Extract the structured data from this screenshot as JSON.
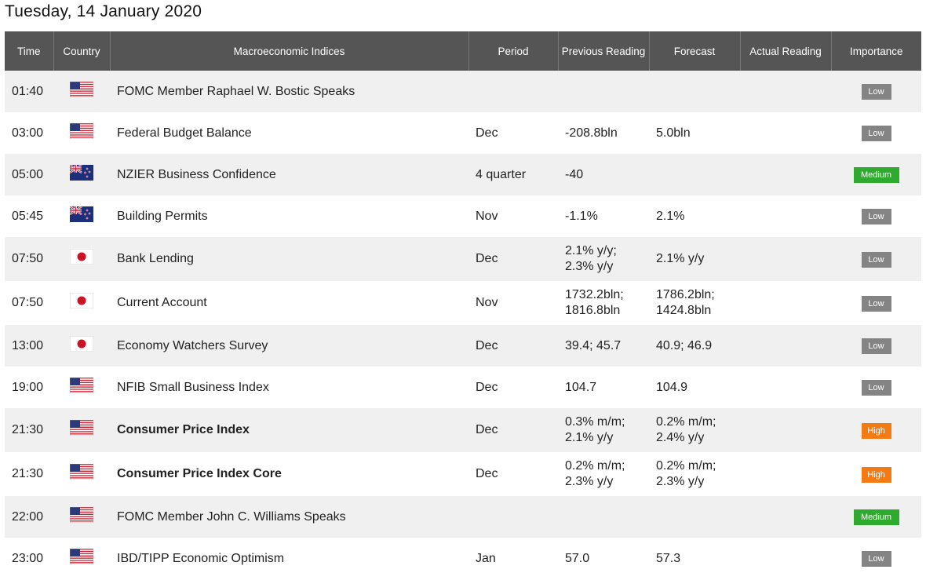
{
  "page": {
    "date_title": "Tuesday, 14 January 2020"
  },
  "colors": {
    "header_bg": "#555555",
    "row_alt_bg": "#f0f0f0",
    "low": "#848484",
    "medium": "#2eaa2e",
    "high": "#f47a14"
  },
  "columns": {
    "time": "Time",
    "country": "Country",
    "indices": "Macroeconomic Indices",
    "period": "Period",
    "previous": "Previous Reading",
    "forecast": "Forecast",
    "actual": "Actual Reading",
    "importance": "Importance"
  },
  "rows": [
    {
      "time": "01:40",
      "flag": "us-flag",
      "name": "FOMC Member Raphael W. Bostic Speaks",
      "bold": false,
      "period": "",
      "previous": "",
      "forecast": "",
      "actual": "",
      "importance": "Low"
    },
    {
      "time": "03:00",
      "flag": "us-flag",
      "name": "Federal Budget Balance",
      "bold": false,
      "period": "Dec",
      "previous": "-208.8bln",
      "forecast": "5.0bln",
      "actual": "",
      "importance": "Low"
    },
    {
      "time": "05:00",
      "flag": "nz-flag",
      "name": "NZIER Business Confidence",
      "bold": false,
      "period": "4 quarter",
      "previous": "-40",
      "forecast": "",
      "actual": "",
      "importance": "Medium"
    },
    {
      "time": "05:45",
      "flag": "nz-flag",
      "name": "Building Permits",
      "bold": false,
      "period": "Nov",
      "previous": "-1.1%",
      "forecast": "2.1%",
      "actual": "",
      "importance": "Low"
    },
    {
      "time": "07:50",
      "flag": "jp-flag",
      "name": "Bank Lending",
      "bold": false,
      "period": "Dec",
      "previous": "2.1% y/y;\n2.3% y/y",
      "forecast": "2.1% y/y",
      "actual": "",
      "importance": "Low"
    },
    {
      "time": "07:50",
      "flag": "jp-flag",
      "name": "Current Account",
      "bold": false,
      "period": "Nov",
      "previous": "1732.2bln;\n1816.8bln",
      "forecast": "1786.2bln;\n1424.8bln",
      "actual": "",
      "importance": "Low"
    },
    {
      "time": "13:00",
      "flag": "jp-flag",
      "name": "Economy Watchers Survey",
      "bold": false,
      "period": "Dec",
      "previous": "39.4; 45.7",
      "forecast": "40.9; 46.9",
      "actual": "",
      "importance": "Low"
    },
    {
      "time": "19:00",
      "flag": "us-flag",
      "name": "NFIB Small Business Index",
      "bold": false,
      "period": "Dec",
      "previous": "104.7",
      "forecast": "104.9",
      "actual": "",
      "importance": "Low"
    },
    {
      "time": "21:30",
      "flag": "us-flag",
      "name": "Consumer Price Index",
      "bold": true,
      "period": "Dec",
      "previous": "0.3% m/m;\n2.1% y/y",
      "forecast": "0.2% m/m;\n2.4% y/y",
      "actual": "",
      "importance": "High"
    },
    {
      "time": "21:30",
      "flag": "us-flag",
      "name": "Consumer Price Index Core",
      "bold": true,
      "period": "Dec",
      "previous": "0.2% m/m;\n2.3% y/y",
      "forecast": "0.2% m/m;\n2.3% y/y",
      "actual": "",
      "importance": "High"
    },
    {
      "time": "22:00",
      "flag": "us-flag",
      "name": "FOMC Member John C. Williams Speaks",
      "bold": false,
      "period": "",
      "previous": "",
      "forecast": "",
      "actual": "",
      "importance": "Medium"
    },
    {
      "time": "23:00",
      "flag": "us-flag",
      "name": "IBD/TIPP Economic Optimism",
      "bold": false,
      "period": "Jan",
      "previous": "57.0",
      "forecast": "57.3",
      "actual": "",
      "importance": "Low"
    }
  ]
}
